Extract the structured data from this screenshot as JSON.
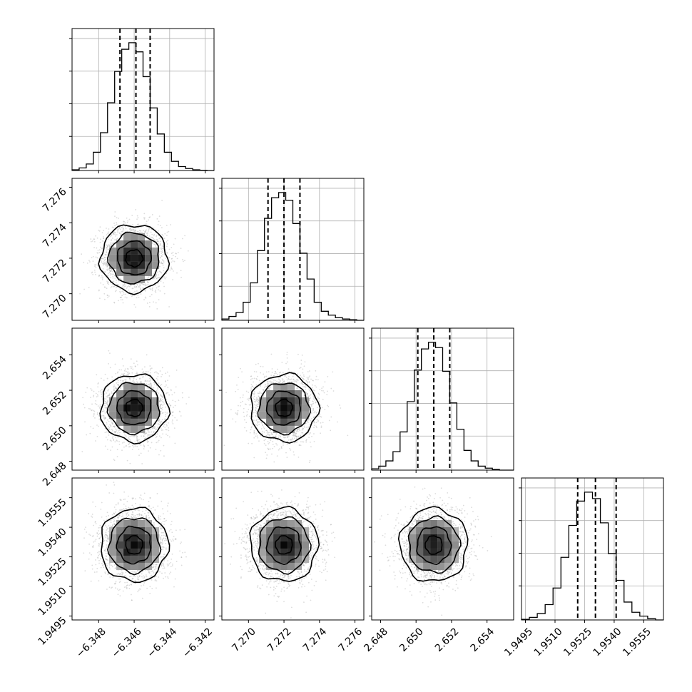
{
  "chart_data": {
    "type": "corner",
    "parameters": [
      {
        "index": 0,
        "range": [
          -6.3495,
          -6.3415
        ],
        "median": -6.346,
        "sigma": 0.00095,
        "quantiles": [
          -6.3468,
          -6.3459,
          -6.3451
        ],
        "ticks": [
          -6.348,
          -6.346,
          -6.344,
          -6.342
        ],
        "tick_labels": [
          "−6.348",
          "−6.346",
          "−6.344",
          "−6.342"
        ],
        "histogram": {
          "bin_edges": [
            -6.3495,
            -6.3491,
            -6.3487,
            -6.3483,
            -6.3479,
            -6.3475,
            -6.3471,
            -6.3467,
            -6.3463,
            -6.3459,
            -6.3455,
            -6.3451,
            -6.3447,
            -6.3443,
            -6.3439,
            -6.3435,
            -6.3431,
            -6.3427,
            -6.3423,
            -6.3419,
            -6.3415
          ],
          "heights": [
            0.005,
            0.02,
            0.05,
            0.14,
            0.29,
            0.52,
            0.76,
            0.93,
            0.98,
            0.91,
            0.72,
            0.48,
            0.28,
            0.14,
            0.07,
            0.03,
            0.015,
            0.005,
            0.002,
            0.0
          ]
        }
      },
      {
        "index": 1,
        "range": [
          7.2685,
          7.2765
        ],
        "median": 7.272,
        "sigma": 0.00095,
        "quantiles": [
          7.2711,
          7.272,
          7.2729
        ],
        "ticks": [
          7.27,
          7.272,
          7.274,
          7.276
        ],
        "tick_labels": [
          "7.270",
          "7.272",
          "7.274",
          "7.276"
        ],
        "histogram": {
          "bin_edges": [
            7.2685,
            7.2689,
            7.2693,
            7.2697,
            7.2701,
            7.2705,
            7.2709,
            7.2713,
            7.2717,
            7.2721,
            7.2725,
            7.2729,
            7.2733,
            7.2737,
            7.2741,
            7.2745,
            7.2749,
            7.2753,
            7.2757,
            7.2761,
            7.2765
          ],
          "heights": [
            0.01,
            0.03,
            0.06,
            0.14,
            0.29,
            0.54,
            0.79,
            0.95,
            0.99,
            0.93,
            0.75,
            0.52,
            0.32,
            0.14,
            0.07,
            0.04,
            0.02,
            0.01,
            0.005,
            0.0
          ]
        }
      },
      {
        "index": 2,
        "range": [
          2.6475,
          2.6555
        ],
        "median": 2.651,
        "sigma": 0.00095,
        "quantiles": [
          2.6501,
          2.651,
          2.6519
        ],
        "ticks": [
          2.648,
          2.65,
          2.652,
          2.654
        ],
        "tick_labels": [
          "2.648",
          "2.650",
          "2.652",
          "2.654"
        ],
        "histogram": {
          "bin_edges": [
            2.6475,
            2.6479,
            2.6483,
            2.6487,
            2.6491,
            2.6495,
            2.6499,
            2.6503,
            2.6507,
            2.6511,
            2.6515,
            2.6519,
            2.6523,
            2.6527,
            2.6531,
            2.6535,
            2.6539,
            2.6543,
            2.6547,
            2.6551,
            2.6555
          ],
          "heights": [
            0.01,
            0.03,
            0.07,
            0.14,
            0.29,
            0.52,
            0.76,
            0.92,
            0.97,
            0.93,
            0.75,
            0.51,
            0.31,
            0.15,
            0.07,
            0.03,
            0.015,
            0.005,
            0.0,
            0.0
          ]
        }
      },
      {
        "index": 3,
        "range": [
          1.9493,
          1.9565
        ],
        "median": 1.9531,
        "sigma": 0.00093,
        "quantiles": [
          1.95215,
          1.95305,
          1.9541
        ],
        "ticks": [
          1.9495,
          1.951,
          1.9525,
          1.954,
          1.9555
        ],
        "tick_labels": [
          "1.9495",
          "1.9510",
          "1.9525",
          "1.9540",
          "1.9555"
        ],
        "histogram": {
          "bin_edges": [
            1.9493,
            1.9497,
            1.9501,
            1.9505,
            1.9509,
            1.9513,
            1.9517,
            1.9521,
            1.9525,
            1.9529,
            1.9533,
            1.9537,
            1.9541,
            1.9545,
            1.9549,
            1.9553,
            1.9557,
            1.9561,
            1.9565
          ],
          "heights": [
            0.005,
            0.02,
            0.05,
            0.12,
            0.25,
            0.49,
            0.74,
            0.93,
            1.0,
            0.95,
            0.76,
            0.52,
            0.31,
            0.14,
            0.06,
            0.03,
            0.01,
            0.0
          ]
        }
      }
    ],
    "pairs": [
      {
        "row": 1,
        "col": 0
      },
      {
        "row": 2,
        "col": 0
      },
      {
        "row": 2,
        "col": 1
      },
      {
        "row": 3,
        "col": 0
      },
      {
        "row": 3,
        "col": 1
      },
      {
        "row": 3,
        "col": 2
      }
    ],
    "contour_levels_sigma": [
      0.5,
      1.0,
      1.5,
      2.0
    ],
    "grid": true,
    "xlabel": "",
    "ylabel": "",
    "title": ""
  },
  "colors": {
    "frame": "#000000",
    "grid": "#b0b0b0",
    "points": "#9a9a9a",
    "contour": "#000000",
    "density_scale": [
      "#ffffff",
      "#000000"
    ]
  }
}
